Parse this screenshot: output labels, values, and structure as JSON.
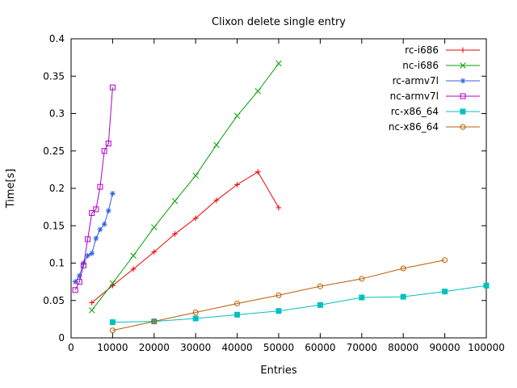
{
  "chart_data": {
    "type": "line",
    "title": "Clixon delete single entry",
    "xlabel": "Entries",
    "ylabel": "Time[s]",
    "xlim": [
      0,
      100000
    ],
    "ylim": [
      0,
      0.4
    ],
    "xticks": [
      0,
      10000,
      20000,
      30000,
      40000,
      50000,
      60000,
      70000,
      80000,
      90000,
      100000
    ],
    "yticks": [
      0,
      0.05,
      0.1,
      0.15,
      0.2,
      0.25,
      0.3,
      0.35,
      0.4
    ],
    "grid": false,
    "legend_position": "top-right-inside",
    "background_color": "#ffffff",
    "axis_color": "#000000",
    "series": [
      {
        "name": "rc-i686",
        "color": "#ee0000",
        "marker": "plus",
        "x": [
          5000,
          10000,
          15000,
          20000,
          25000,
          30000,
          35000,
          40000,
          45000,
          50000
        ],
        "y": [
          0.047,
          0.07,
          0.092,
          0.115,
          0.139,
          0.16,
          0.184,
          0.205,
          0.222,
          0.174
        ]
      },
      {
        "name": "nc-i686",
        "color": "#00a000",
        "marker": "cross",
        "x": [
          5000,
          10000,
          15000,
          20000,
          25000,
          30000,
          35000,
          40000,
          45000,
          50000
        ],
        "y": [
          0.037,
          0.073,
          0.11,
          0.148,
          0.183,
          0.217,
          0.258,
          0.297,
          0.33,
          0.367
        ]
      },
      {
        "name": "rc-armv7l",
        "color": "#3060e0",
        "marker": "asterisk",
        "x": [
          1000,
          2000,
          3000,
          4000,
          5000,
          6000,
          7000,
          8000,
          9000,
          10000
        ],
        "y": [
          0.075,
          0.083,
          0.1,
          0.11,
          0.113,
          0.133,
          0.145,
          0.152,
          0.17,
          0.193
        ]
      },
      {
        "name": "nc-armv7l",
        "color": "#ad00c6",
        "marker": "square-open",
        "x": [
          1000,
          2000,
          3000,
          4000,
          5000,
          6000,
          7000,
          8000,
          9000,
          10000
        ],
        "y": [
          0.064,
          0.075,
          0.097,
          0.132,
          0.167,
          0.172,
          0.202,
          0.25,
          0.26,
          0.335
        ]
      },
      {
        "name": "rc-x86_64",
        "color": "#00c0c0",
        "marker": "square-filled",
        "x": [
          10000,
          20000,
          30000,
          40000,
          50000,
          60000,
          70000,
          80000,
          90000,
          100000
        ],
        "y": [
          0.021,
          0.022,
          0.026,
          0.031,
          0.036,
          0.044,
          0.054,
          0.055,
          0.062,
          0.07
        ]
      },
      {
        "name": "nc-x86_64",
        "color": "#b85c00",
        "marker": "circle-open",
        "x": [
          10000,
          20000,
          30000,
          40000,
          50000,
          60000,
          70000,
          80000,
          90000
        ],
        "y": [
          0.01,
          0.022,
          0.034,
          0.046,
          0.057,
          0.069,
          0.079,
          0.093,
          0.104
        ]
      }
    ]
  }
}
